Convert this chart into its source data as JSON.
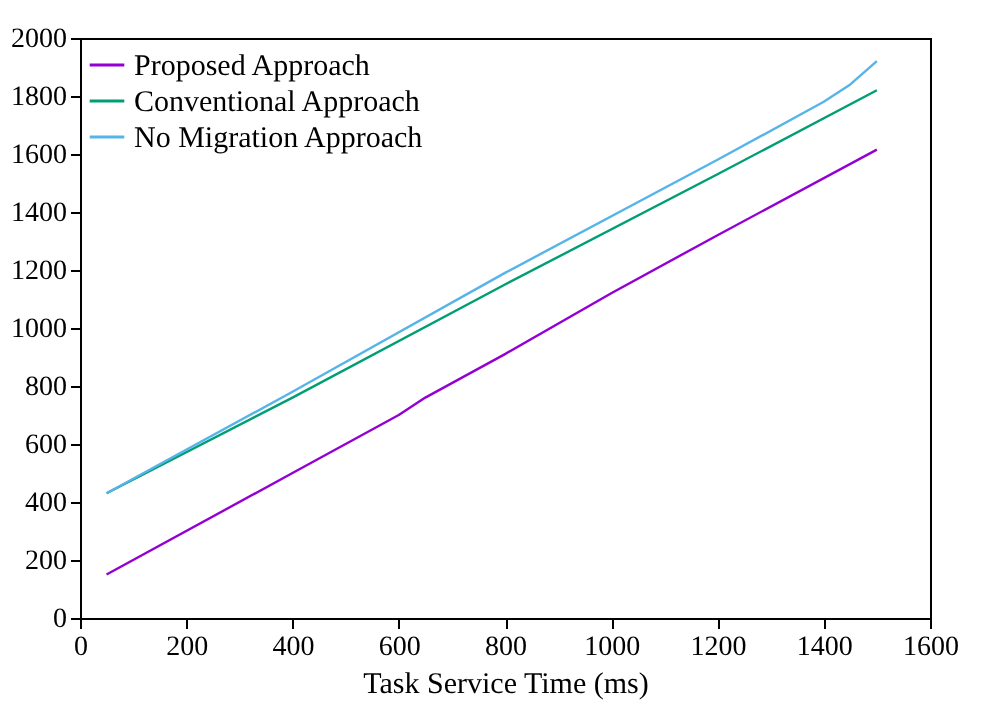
{
  "chart_data": {
    "type": "line",
    "xlabel": "Task Service Time (ms)",
    "xlim": [
      0,
      1600
    ],
    "xticks": [
      0,
      200,
      400,
      600,
      800,
      1000,
      1200,
      1400,
      1600
    ],
    "ylim": [
      0,
      2000
    ],
    "yticks": [
      0,
      200,
      400,
      600,
      800,
      1000,
      1200,
      1400,
      1600,
      1800,
      2000
    ],
    "grid": false,
    "legend": "top left",
    "marker": "none",
    "line_style": "solid",
    "series": [
      {
        "name": "Proposed Approach",
        "color": "#9400d3",
        "x": [
          50,
          400,
          600,
          650,
          800,
          1000,
          1200,
          1500
        ],
        "values": [
          150,
          500,
          700,
          760,
          910,
          1120,
          1320,
          1615
        ]
      },
      {
        "name": "Conventional Approach",
        "color": "#009e73",
        "x": [
          50,
          400,
          800,
          1200,
          1500
        ],
        "values": [
          430,
          760,
          1150,
          1530,
          1820
        ]
      },
      {
        "name": "No Migration Approach",
        "color": "#56b4e9",
        "x": [
          50,
          400,
          800,
          1200,
          1400,
          1450,
          1500
        ],
        "values": [
          430,
          780,
          1190,
          1580,
          1780,
          1840,
          1920
        ]
      }
    ]
  }
}
